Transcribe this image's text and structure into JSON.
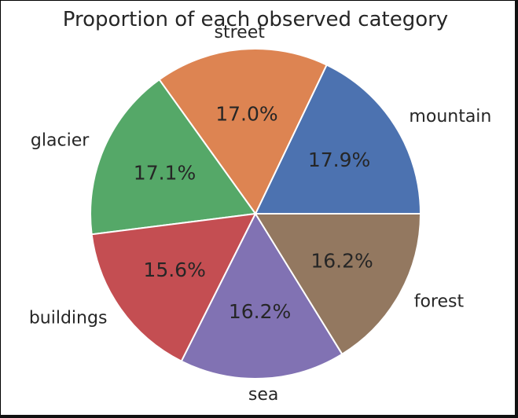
{
  "chart_data": {
    "type": "pie",
    "title": "Proportion of each observed category",
    "categories": [
      "mountain",
      "street",
      "glacier",
      "buildings",
      "sea",
      "forest"
    ],
    "values": [
      17.9,
      17.0,
      17.1,
      15.6,
      16.2,
      16.2
    ],
    "value_labels": [
      "17.9%",
      "17.0%",
      "17.1%",
      "15.6%",
      "16.2%",
      "16.2%"
    ],
    "colors": [
      "#4c72b0",
      "#dd8452",
      "#55a868",
      "#c44e52",
      "#8172b3",
      "#937860"
    ],
    "start_angle": 0,
    "direction": "counterclockwise",
    "legend": "none"
  }
}
